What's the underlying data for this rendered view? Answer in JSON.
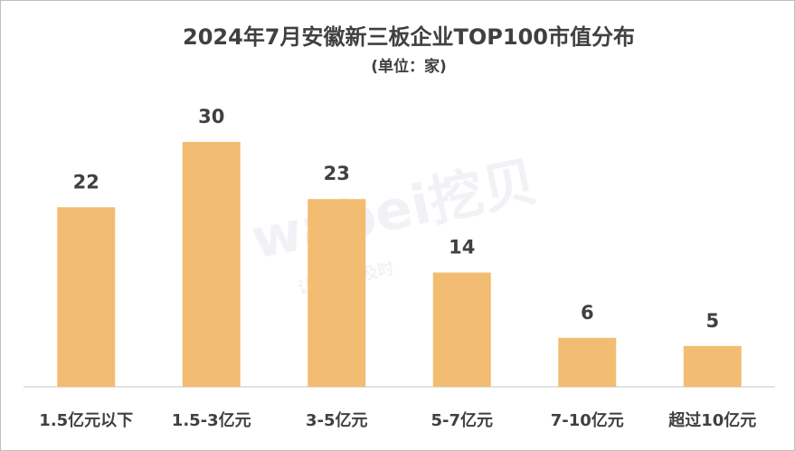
{
  "chart_data": {
    "type": "bar",
    "title": "2024年7月安徽新三板企业TOP100市值分布",
    "subtitle": "(单位：家)",
    "categories": [
      "1.5亿元以下",
      "1.5-3亿元",
      "3-5亿元",
      "5-7亿元",
      "7-10亿元",
      "超过10亿元"
    ],
    "values": [
      22,
      30,
      23,
      14,
      6,
      5
    ],
    "color": "#f2bd72",
    "grid": false
  },
  "watermark": {
    "brand": "wabei挖贝",
    "slogan": "让信披更及时"
  }
}
